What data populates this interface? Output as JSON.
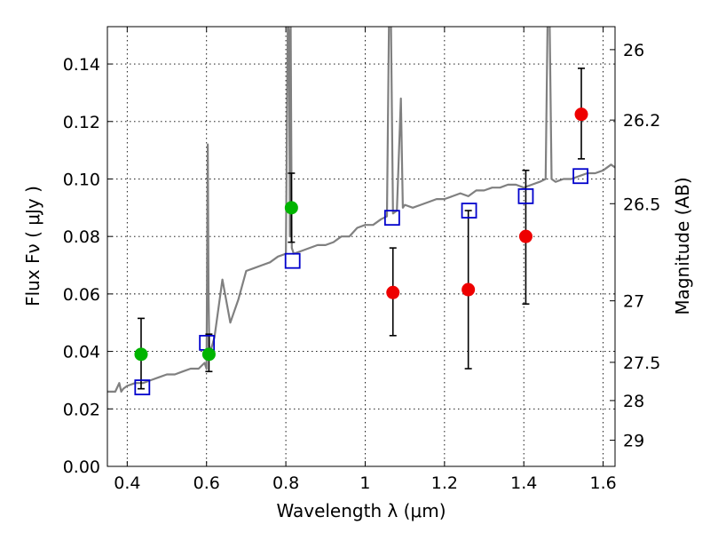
{
  "chart_data": {
    "type": "scatter",
    "xlabel": "Wavelength  λ (μm)",
    "ylabel_left": "Flux  Fν  ( μJy )",
    "ylabel_right": "Magnitude (AB)",
    "xlim": [
      0.35,
      1.63
    ],
    "ylim": [
      0.0,
      0.153
    ],
    "xticks": [
      0.4,
      0.6,
      0.8,
      1.0,
      1.2,
      1.4,
      1.6
    ],
    "xtick_labels": [
      "0.4",
      "0.6",
      "0.8",
      "1",
      "1.2",
      "1.4",
      "1.6"
    ],
    "yticks": [
      0.0,
      0.02,
      0.04,
      0.06,
      0.08,
      0.1,
      0.12,
      0.14
    ],
    "ytick_labels": [
      "0.00",
      "0.02",
      "0.04",
      "0.06",
      "0.08",
      "0.10",
      "0.12",
      "0.14"
    ],
    "right_axis_ticks": [
      {
        "label": "26",
        "flux": 0.145
      },
      {
        "label": "26.2",
        "flux": 0.1205
      },
      {
        "label": "26.5",
        "flux": 0.0914
      },
      {
        "label": "27",
        "flux": 0.0576
      },
      {
        "label": "27.5",
        "flux": 0.0362
      },
      {
        "label": "28",
        "flux": 0.0229
      },
      {
        "label": "29",
        "flux": 0.0091
      }
    ],
    "grid": true,
    "colors": {
      "spectrum": "#808080",
      "detection": "#00b400",
      "non_detection": "#ee0000",
      "model": "#0000cc",
      "errorbar": "#000000"
    },
    "spectrum": {
      "x": [
        0.35,
        0.37,
        0.38,
        0.385,
        0.39,
        0.4,
        0.42,
        0.44,
        0.46,
        0.48,
        0.5,
        0.52,
        0.54,
        0.56,
        0.58,
        0.595,
        0.6,
        0.603,
        0.605,
        0.607,
        0.61,
        0.62,
        0.64,
        0.66,
        0.68,
        0.7,
        0.72,
        0.74,
        0.76,
        0.78,
        0.8,
        0.805,
        0.808,
        0.81,
        0.812,
        0.815,
        0.82,
        0.84,
        0.86,
        0.88,
        0.9,
        0.92,
        0.94,
        0.96,
        0.98,
        1.0,
        1.02,
        1.04,
        1.055,
        1.06,
        1.065,
        1.07,
        1.08,
        1.09,
        1.095,
        1.1,
        1.12,
        1.14,
        1.16,
        1.18,
        1.2,
        1.22,
        1.24,
        1.26,
        1.28,
        1.3,
        1.32,
        1.34,
        1.36,
        1.38,
        1.4,
        1.42,
        1.44,
        1.455,
        1.46,
        1.465,
        1.47,
        1.48,
        1.5,
        1.52,
        1.54,
        1.56,
        1.58,
        1.6,
        1.62,
        1.63
      ],
      "y": [
        0.026,
        0.026,
        0.029,
        0.026,
        0.027,
        0.028,
        0.029,
        0.029,
        0.03,
        0.031,
        0.032,
        0.032,
        0.033,
        0.034,
        0.034,
        0.036,
        0.034,
        0.112,
        0.06,
        0.042,
        0.04,
        0.045,
        0.065,
        0.05,
        0.058,
        0.068,
        0.069,
        0.07,
        0.071,
        0.073,
        0.074,
        0.155,
        0.15,
        0.08,
        0.155,
        0.076,
        0.074,
        0.075,
        0.076,
        0.077,
        0.077,
        0.078,
        0.08,
        0.08,
        0.083,
        0.084,
        0.084,
        0.086,
        0.087,
        0.155,
        0.155,
        0.088,
        0.089,
        0.128,
        0.09,
        0.091,
        0.09,
        0.091,
        0.092,
        0.093,
        0.093,
        0.094,
        0.095,
        0.094,
        0.096,
        0.096,
        0.097,
        0.097,
        0.098,
        0.098,
        0.097,
        0.098,
        0.099,
        0.1,
        0.155,
        0.155,
        0.1,
        0.099,
        0.1,
        0.1,
        0.101,
        0.102,
        0.102,
        0.103,
        0.105,
        0.104
      ]
    },
    "detections": [
      {
        "x": 0.435,
        "y": 0.039,
        "yerr_low": 0.027,
        "yerr_high": 0.0515
      },
      {
        "x": 0.606,
        "y": 0.039,
        "yerr_low": 0.033,
        "yerr_high": 0.046
      },
      {
        "x": 0.814,
        "y": 0.09,
        "yerr_low": 0.078,
        "yerr_high": 0.102
      }
    ],
    "non_detections": [
      {
        "x": 1.07,
        "y": 0.0605,
        "yerr_low": 0.0455,
        "yerr_high": 0.076
      },
      {
        "x": 1.26,
        "y": 0.0615,
        "yerr_low": 0.034,
        "yerr_high": 0.089
      },
      {
        "x": 1.405,
        "y": 0.08,
        "yerr_low": 0.0565,
        "yerr_high": 0.103
      },
      {
        "x": 1.545,
        "y": 0.1225,
        "yerr_low": 0.107,
        "yerr_high": 0.1385
      }
    ],
    "model_points": [
      {
        "x": 0.438,
        "y": 0.0275
      },
      {
        "x": 0.601,
        "y": 0.043
      },
      {
        "x": 0.817,
        "y": 0.0715
      },
      {
        "x": 1.068,
        "y": 0.0865
      },
      {
        "x": 1.262,
        "y": 0.089
      },
      {
        "x": 1.405,
        "y": 0.094
      },
      {
        "x": 1.543,
        "y": 0.101
      }
    ]
  }
}
